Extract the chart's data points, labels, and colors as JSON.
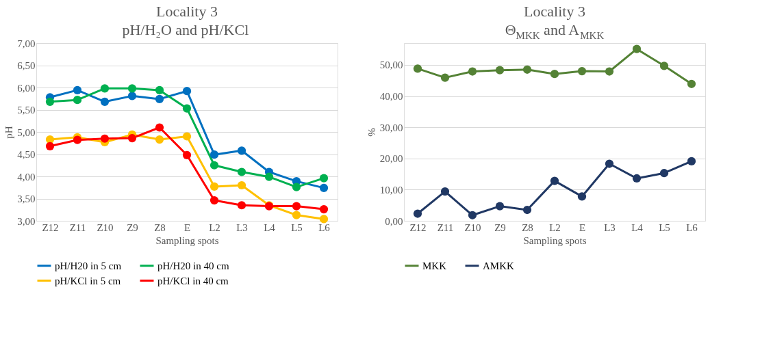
{
  "chart_data": [
    {
      "type": "line",
      "title": "Locality 3",
      "subtitle": "pH/H₂O and pH/KCl",
      "xlabel": "Sampling spots",
      "ylabel": "pH",
      "categories": [
        "Z12",
        "Z11",
        "Z10",
        "Z9",
        "Z8",
        "E",
        "L2",
        "L3",
        "L4",
        "L5",
        "L6"
      ],
      "series": [
        {
          "name": "pH/H20 in 5 cm",
          "color": "#0070c0",
          "values": [
            5.78,
            5.94,
            5.68,
            5.81,
            5.74,
            5.92,
            4.49,
            4.58,
            4.1,
            3.89,
            3.74
          ]
        },
        {
          "name": "pH/H20 in 40 cm",
          "color": "#00b050",
          "values": [
            5.68,
            5.72,
            5.98,
            5.98,
            5.94,
            5.53,
            4.25,
            4.1,
            3.99,
            3.76,
            3.96
          ]
        },
        {
          "name": "pH/KCl in 5 cm",
          "color": "#ffc000",
          "values": [
            4.83,
            4.88,
            4.77,
            4.94,
            4.83,
            4.9,
            3.77,
            3.8,
            3.35,
            3.13,
            3.04
          ]
        },
        {
          "name": "pH/KCl in 40 cm",
          "color": "#ff0000",
          "values": [
            4.68,
            4.82,
            4.85,
            4.86,
            5.1,
            4.48,
            3.46,
            3.35,
            3.33,
            3.33,
            3.26
          ]
        }
      ],
      "ylim": [
        3,
        7
      ],
      "yticks": [
        {
          "value": 3,
          "label": "3,00"
        },
        {
          "value": 3.5,
          "label": "3,50"
        },
        {
          "value": 4,
          "label": "4,00"
        },
        {
          "value": 4.5,
          "label": "4,50"
        },
        {
          "value": 5,
          "label": "5,00"
        },
        {
          "value": 5.5,
          "label": "5,50"
        },
        {
          "value": 6,
          "label": "6,00"
        },
        {
          "value": 6.5,
          "label": "6,50"
        },
        {
          "value": 7,
          "label": "7,00"
        }
      ],
      "grid": "y",
      "legend": "bottom",
      "marker": "circle",
      "line_style": "solid"
    },
    {
      "type": "line",
      "title": "Locality 3",
      "subtitle": "Θ$_{MKK}$ and A$_{MKK}$",
      "xlabel": "Sampling spots",
      "ylabel": "%",
      "categories": [
        "Z12",
        "Z11",
        "Z10",
        "Z9",
        "Z8",
        "L2",
        "E",
        "L3",
        "L4",
        "L5",
        "L6"
      ],
      "series": [
        {
          "name": "MKK",
          "color": "#548235",
          "values": [
            48.8,
            45.9,
            47.9,
            48.3,
            48.5,
            47.1,
            48.0,
            47.9,
            55.1,
            49.7,
            43.9
          ]
        },
        {
          "name": "AMKK",
          "color": "#203864",
          "values": [
            2.3,
            9.4,
            1.8,
            4.7,
            3.5,
            12.8,
            7.8,
            18.3,
            13.6,
            15.3,
            19.1
          ]
        }
      ],
      "ylim": [
        0,
        57
      ],
      "yticks": [
        {
          "value": 0,
          "label": "0,00"
        },
        {
          "value": 10,
          "label": "10,00"
        },
        {
          "value": 20,
          "label": "20,00"
        },
        {
          "value": 30,
          "label": "30,00"
        },
        {
          "value": 40,
          "label": "40,00"
        },
        {
          "value": 50,
          "label": "50,00"
        }
      ],
      "grid": "y",
      "legend": "bottom",
      "marker": "circle",
      "line_style": "solid"
    }
  ]
}
